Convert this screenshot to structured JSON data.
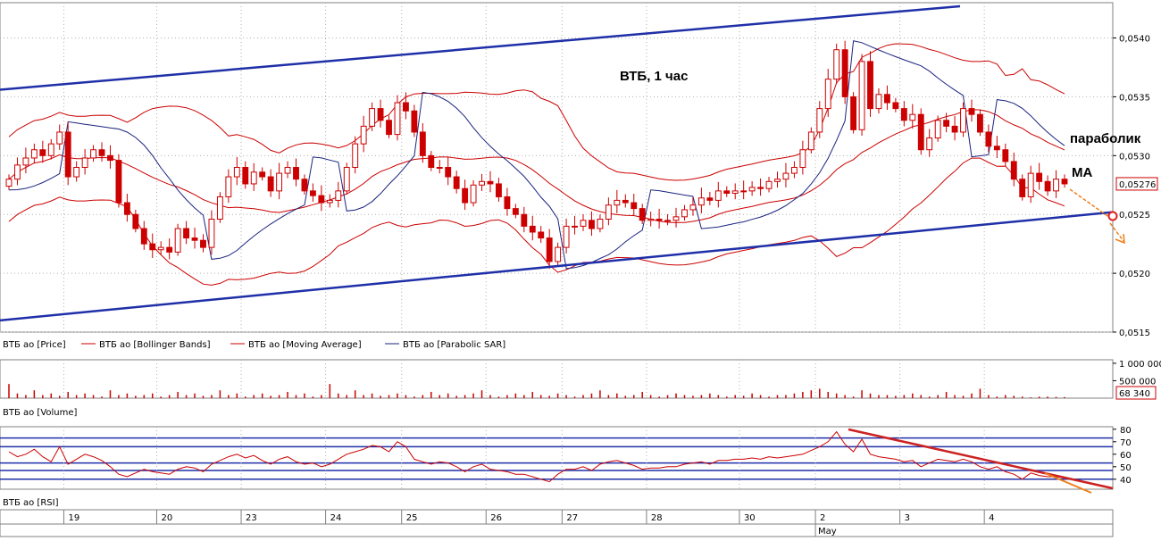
{
  "chart_data": {
    "type": "candlestick",
    "title": "ВТБ, 1 час",
    "annotations": [
      "параболик",
      "MA"
    ],
    "last_price_label": "0,05276",
    "last_volume_label": "68 340",
    "price_axis": {
      "ylim": [
        0.0515,
        0.0543
      ],
      "ticks": [
        "0,0540",
        "0,0535",
        "0,0530",
        "0,0525",
        "0,0520",
        "0,0515"
      ],
      "tick_values": [
        0.054,
        0.0535,
        0.053,
        0.0525,
        0.052,
        0.0515
      ]
    },
    "volume_axis": {
      "ylim": [
        0,
        1100000
      ],
      "ticks": [
        "1 000 000",
        "500 000"
      ],
      "tick_values": [
        1000000,
        500000
      ]
    },
    "rsi_axis": {
      "ylim": [
        32,
        82
      ],
      "ticks": [
        "80",
        "70",
        "60",
        "50",
        "40"
      ],
      "tick_values": [
        80,
        70,
        60,
        50,
        40
      ],
      "levels": [
        73,
        66,
        53,
        47,
        40
      ]
    },
    "date_labels": [
      "19",
      "20",
      "23",
      "24",
      "25",
      "26",
      "27",
      "28",
      "30",
      "2",
      "3",
      "4"
    ],
    "date_bar_index": [
      7,
      18,
      28,
      38,
      47,
      57,
      66,
      76,
      87,
      96,
      106,
      116
    ],
    "month_label": "May",
    "month_bar_index": 96,
    "legends": {
      "price": [
        "ВТБ ао [Price]",
        "ВТБ ао [Bollinger Bands]",
        "ВТБ ао [Moving Average]",
        "ВТБ ао [Parabolic SAR]"
      ],
      "volume": "ВТБ ао [Volume]",
      "rsi": "ВТБ ао [RSI]"
    },
    "close": [
      0.0528,
      0.05292,
      0.05298,
      0.05305,
      0.053,
      0.0531,
      0.0532,
      0.05282,
      0.0529,
      0.05298,
      0.05305,
      0.053,
      0.05296,
      0.0526,
      0.0525,
      0.05238,
      0.05225,
      0.0522,
      0.05222,
      0.05218,
      0.05238,
      0.0523,
      0.05228,
      0.05222,
      0.05246,
      0.05265,
      0.05282,
      0.0529,
      0.05276,
      0.05286,
      0.05282,
      0.0527,
      0.05285,
      0.0529,
      0.0528,
      0.0527,
      0.05266,
      0.0526,
      0.05262,
      0.0527,
      0.0529,
      0.0531,
      0.05325,
      0.0534,
      0.0533,
      0.05318,
      0.05345,
      0.05338,
      0.0532,
      0.053,
      0.0529,
      0.0529,
      0.05282,
      0.05272,
      0.0526,
      0.05275,
      0.05278,
      0.05276,
      0.05265,
      0.05255,
      0.0525,
      0.0524,
      0.05235,
      0.0523,
      0.0521,
      0.05222,
      0.0524,
      0.0524,
      0.05245,
      0.05238,
      0.05246,
      0.05258,
      0.05262,
      0.0526,
      0.05255,
      0.05245,
      0.05246,
      0.05245,
      0.05245,
      0.05248,
      0.05254,
      0.05258,
      0.05264,
      0.05262,
      0.0527,
      0.05268,
      0.0527,
      0.0527,
      0.05273,
      0.05272,
      0.05278,
      0.0528,
      0.05285,
      0.0529,
      0.05305,
      0.0532,
      0.0534,
      0.05365,
      0.0539,
      0.0535,
      0.05322,
      0.0538,
      0.0534,
      0.05352,
      0.05345,
      0.0534,
      0.0533,
      0.05335,
      0.05305,
      0.05315,
      0.0533,
      0.05325,
      0.0532,
      0.0534,
      0.05335,
      0.0532,
      0.05308,
      0.05305,
      0.05295,
      0.0528,
      0.05265,
      0.05285,
      0.05278,
      0.0527,
      0.0528,
      0.05276
    ],
    "volume_levels": [
      0.9,
      0.3,
      0.2,
      0.5,
      0.2,
      0.3,
      0.15,
      0.4,
      0.2,
      0.3,
      0.2,
      0.1,
      0.5,
      0.2,
      0.3,
      0.15,
      0.2,
      0.3,
      0.1,
      0.2,
      0.4,
      0.2,
      0.3,
      0.15,
      0.2,
      0.5,
      0.2,
      0.3,
      0.1,
      0.2,
      0.3,
      0.15,
      0.2,
      0.4,
      0.2,
      0.3,
      0.1,
      0.2,
      0.9,
      0.3,
      0.2,
      0.5,
      0.2,
      0.3,
      0.15,
      0.2,
      0.3,
      0.2,
      0.1,
      0.2,
      0.4,
      0.2,
      0.3,
      0.15,
      0.2,
      0.3,
      0.5,
      0.2,
      0.1,
      0.2,
      0.3,
      0.2,
      0.4,
      0.2,
      0.15,
      0.3,
      0.2,
      0.1,
      0.2,
      0.3,
      0.5,
      0.2,
      0.3,
      0.15,
      0.2,
      0.4,
      0.2,
      0.1,
      0.2,
      0.3,
      0.2,
      0.15,
      0.2,
      0.3,
      0.2,
      0.1,
      0.2,
      0.15,
      0.3,
      0.2,
      0.1,
      0.2,
      0.2,
      0.3,
      0.4,
      0.5,
      0.6,
      0.4,
      0.3,
      0.2,
      0.1,
      0.5,
      0.3,
      0.2,
      0.2,
      0.15,
      0.2,
      0.3,
      0.2,
      0.1,
      0.2,
      0.4,
      0.2,
      0.15,
      0.3,
      0.6,
      0.2,
      0.1,
      0.2,
      0.15,
      0.1,
      0.05,
      0.1,
      0.1,
      0.08,
      0.07
    ],
    "rsi_values": [
      62,
      58,
      60,
      64,
      58,
      54,
      66,
      52,
      56,
      60,
      58,
      55,
      50,
      44,
      42,
      45,
      48,
      46,
      45,
      44,
      48,
      50,
      49,
      46,
      52,
      55,
      58,
      60,
      57,
      59,
      55,
      52,
      56,
      58,
      54,
      52,
      53,
      50,
      52,
      56,
      60,
      62,
      64,
      67,
      66,
      62,
      70,
      66,
      56,
      54,
      52,
      54,
      53,
      50,
      46,
      50,
      52,
      48,
      47,
      46,
      44,
      44,
      42,
      40,
      38,
      44,
      48,
      48,
      50,
      47,
      52,
      54,
      55,
      53,
      51,
      48,
      49,
      49,
      50,
      50,
      52,
      53,
      54,
      52,
      55,
      55,
      56,
      56,
      57,
      56,
      58,
      57,
      58,
      59,
      60,
      63,
      66,
      70,
      78,
      68,
      62,
      72,
      60,
      58,
      57,
      56,
      54,
      55,
      50,
      53,
      56,
      55,
      54,
      56,
      54,
      50,
      48,
      50,
      46,
      44,
      40,
      45,
      43,
      42,
      42,
      41
    ],
    "colors": {
      "up": "#cc0000",
      "down": "#cc0000",
      "bollinger": "#cc0000",
      "ma": "#cc0000",
      "sar": "#1a237e",
      "channel": "#1f2fa8",
      "rsi_level": "#1f2fa8",
      "rsi_trend": "#cc2222",
      "forecast": "#ef7f1a",
      "grid": "#b0b0b0",
      "label_red": "#cc0000"
    }
  }
}
